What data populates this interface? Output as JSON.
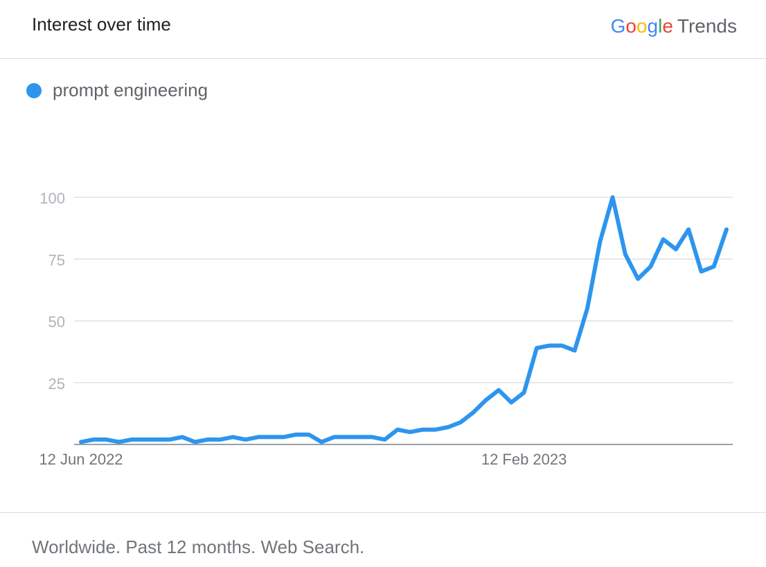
{
  "header": {
    "title": "Interest over time",
    "brand_letters": [
      "G",
      "o",
      "o",
      "g",
      "l",
      "e"
    ],
    "brand_colors": [
      "#4285f4",
      "#ea4335",
      "#fbbc05",
      "#4285f4",
      "#34a853",
      "#ea4335"
    ],
    "brand_suffix": "Trends"
  },
  "legend": {
    "label": "prompt engineering",
    "color": "#2d95ee"
  },
  "footer": {
    "text": "Worldwide. Past 12 months. Web Search."
  },
  "chart_data": {
    "type": "line",
    "title": "Interest over time",
    "xlabel": "",
    "ylabel": "",
    "ylim": [
      0,
      100
    ],
    "yticks": [
      25,
      50,
      75,
      100
    ],
    "xticks": [
      {
        "index": 0,
        "label": "12 Jun 2022"
      },
      {
        "index": 35,
        "label": "12 Feb 2023"
      }
    ],
    "grid": true,
    "legend_position": "top-left",
    "color": "#2d95ee",
    "series": [
      {
        "name": "prompt engineering",
        "values": [
          1,
          2,
          2,
          1,
          2,
          2,
          2,
          2,
          3,
          1,
          2,
          2,
          3,
          2,
          3,
          3,
          3,
          4,
          4,
          1,
          3,
          3,
          3,
          3,
          2,
          6,
          5,
          6,
          6,
          7,
          9,
          13,
          18,
          22,
          17,
          21,
          39,
          40,
          40,
          38,
          55,
          82,
          100,
          77,
          67,
          72,
          83,
          79,
          87,
          70,
          72,
          87
        ]
      }
    ]
  }
}
